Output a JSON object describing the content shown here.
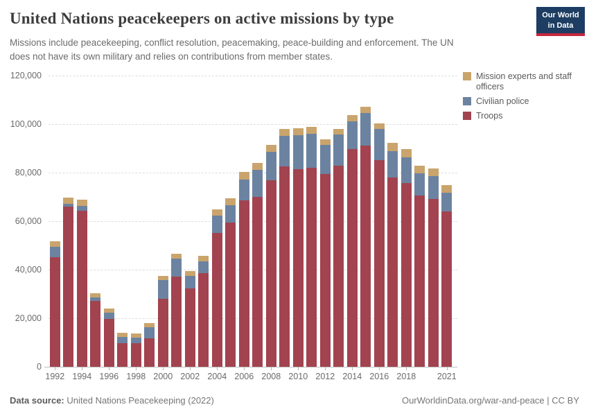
{
  "header": {
    "title": "United Nations peacekeepers on active missions by type",
    "subtitle_lines": [
      "Missions include peacekeeping, conflict resolution, peacemaking, peace-building and enforcement. The UN",
      "does not have its own military and relies on contributions from member states."
    ],
    "logo": {
      "line1": "Our World",
      "line2": "in Data",
      "bg_color": "#1d3d63",
      "stripe_color": "#c5273e"
    }
  },
  "legend": {
    "items": [
      {
        "label": "Mission experts and staff officers",
        "color": "#c9a46c"
      },
      {
        "label": "Civilian police",
        "color": "#6b83a1"
      },
      {
        "label": "Troops",
        "color": "#a2434f"
      }
    ]
  },
  "footer": {
    "source_label": "Data source:",
    "source_value": "United Nations Peacekeeping (2022)",
    "credit": "OurWorldinData.org/war-and-peace | CC BY"
  },
  "chart_data": {
    "type": "bar",
    "stacked": true,
    "title": "United Nations peacekeepers on active missions by type",
    "xlabel": "",
    "ylabel": "",
    "ylim": [
      0,
      120000
    ],
    "grid": "horizontal-dashed",
    "legend_position": "top-right",
    "x": [
      1992,
      1993,
      1994,
      1995,
      1996,
      1997,
      1998,
      1999,
      2000,
      2001,
      2002,
      2003,
      2004,
      2005,
      2006,
      2007,
      2008,
      2009,
      2010,
      2011,
      2012,
      2013,
      2014,
      2015,
      2016,
      2017,
      2018,
      2019,
      2020,
      2021
    ],
    "series": [
      {
        "name": "Troops",
        "color": "#a2434f",
        "values": [
          45000,
          65900,
          64200,
          27200,
          19600,
          9800,
          9600,
          11700,
          27900,
          37200,
          32200,
          38600,
          55200,
          59500,
          68700,
          70000,
          76900,
          82600,
          81400,
          82100,
          79300,
          82900,
          89600,
          91100,
          85200,
          77900,
          75800,
          70700,
          69100,
          64000
        ]
      },
      {
        "name": "Civilian police",
        "color": "#6b83a1",
        "values": [
          4500,
          1300,
          2200,
          1300,
          2600,
          2600,
          2400,
          4600,
          7800,
          7300,
          5200,
          4900,
          7000,
          7200,
          8400,
          11100,
          11600,
          12500,
          14100,
          14000,
          12000,
          12800,
          11600,
          13600,
          12700,
          11000,
          10400,
          9100,
          9500,
          7600
        ]
      },
      {
        "name": "Mission experts and staff officers",
        "color": "#c9a46c",
        "values": [
          2200,
          2500,
          2600,
          1900,
          1900,
          1700,
          1600,
          1600,
          1700,
          2100,
          1900,
          2100,
          2600,
          2800,
          3100,
          3000,
          3000,
          2800,
          2800,
          2700,
          2500,
          2200,
          2500,
          2400,
          2400,
          3500,
          3500,
          3100,
          3100,
          3200
        ]
      }
    ],
    "y_tick_labels": [
      "0",
      "20,000",
      "40,000",
      "60,000",
      "80,000",
      "100,000",
      "120,000"
    ],
    "x_tick_labels": [
      "1992",
      "1994",
      "1996",
      "1998",
      "2000",
      "2002",
      "2004",
      "2006",
      "2008",
      "2010",
      "2012",
      "2014",
      "2016",
      "2018",
      "2021"
    ]
  }
}
